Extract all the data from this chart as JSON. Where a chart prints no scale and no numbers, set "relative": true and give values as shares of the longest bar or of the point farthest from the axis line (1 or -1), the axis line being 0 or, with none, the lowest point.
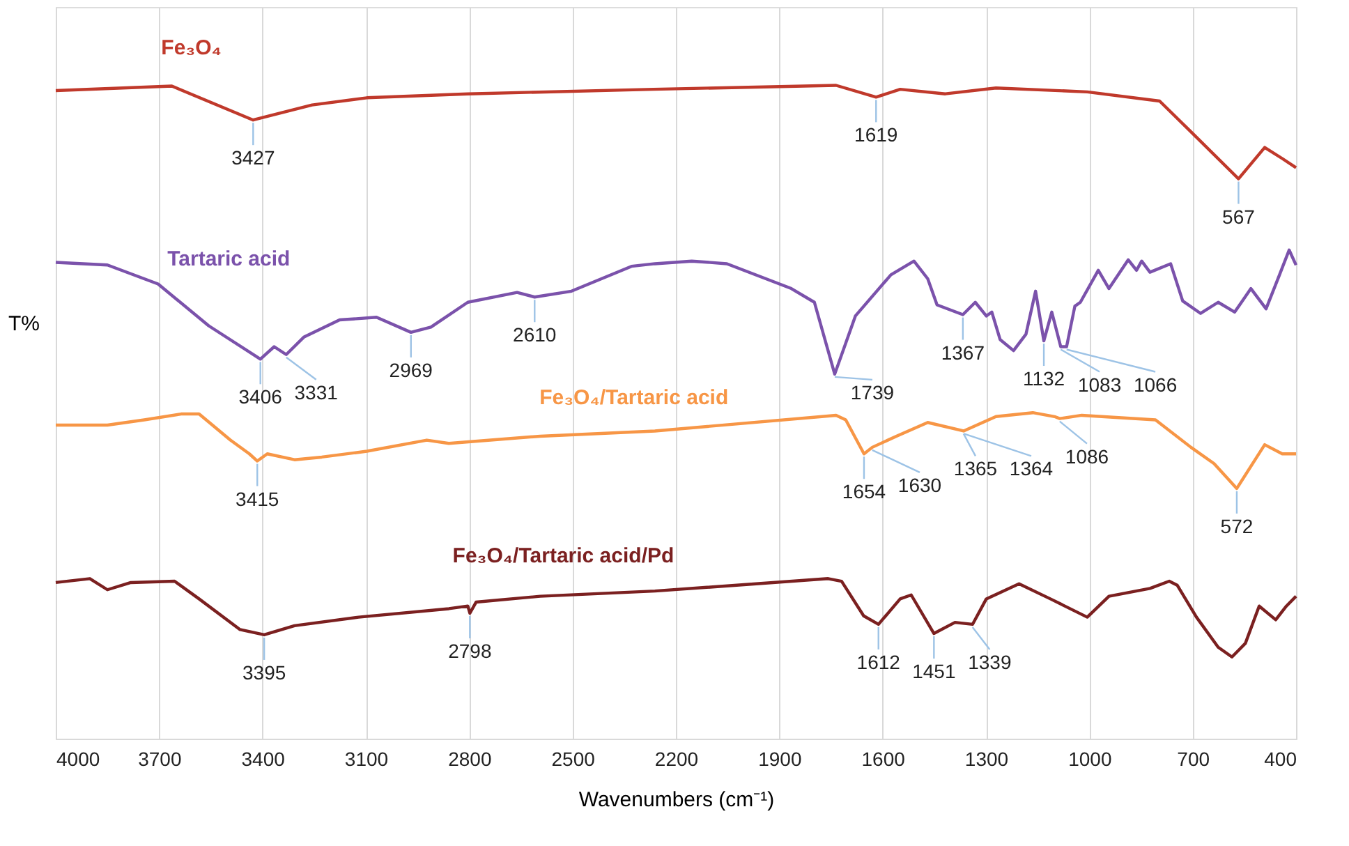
{
  "chart_data": {
    "type": "line",
    "relative": true,
    "xlabel": "Wavenumbers (cm⁻¹)",
    "ylabel": "T%",
    "xlim": [
      4000,
      400
    ],
    "xticks": [
      {
        "value": 4000,
        "label": "4000"
      },
      {
        "value": 3700,
        "label": "3700"
      },
      {
        "value": 3400,
        "label": "3400"
      },
      {
        "value": 3100,
        "label": "3100"
      },
      {
        "value": 2800,
        "label": "2800"
      },
      {
        "value": 2500,
        "label": "2500"
      },
      {
        "value": 2200,
        "label": "2200"
      },
      {
        "value": 1900,
        "label": "1900"
      },
      {
        "value": 1600,
        "label": "1600"
      },
      {
        "value": 1300,
        "label": "1300"
      },
      {
        "value": 1000,
        "label": "1000"
      },
      {
        "value": 700,
        "label": "700"
      },
      {
        "value": 400,
        "label": "400"
      }
    ],
    "grid": "x",
    "legend": false,
    "line_style": "solid",
    "marker": "none",
    "series": [
      {
        "name": "Fe₃O₄",
        "color": "#c0392b",
        "x": [
          4000,
          3663,
          3427,
          3256,
          3097,
          2804,
          2265,
          1735,
          1619,
          1549,
          1418,
          1271,
          1006,
          796,
          705,
          567,
          491,
          440,
          400
        ],
        "values": [
          0.992,
          0.999,
          0.947,
          0.97,
          0.981,
          0.987,
          0.994,
          1.0,
          0.982,
          0.994,
          0.987,
          0.996,
          0.99,
          0.976,
          0.929,
          0.857,
          0.905,
          0.888,
          0.874
        ]
      },
      {
        "name": "Tartaric acid",
        "color": "#7b52ab",
        "x": [
          4000,
          3850,
          3703,
          3556,
          3406,
          3366,
          3331,
          3279,
          3176,
          3069,
          2969,
          2911,
          2804,
          2661,
          2610,
          2503,
          2329,
          2261,
          2154,
          2052,
          1865,
          1798,
          1739,
          1679,
          1576,
          1509,
          1469,
          1442,
          1367,
          1331,
          1299,
          1283,
          1259,
          1220,
          1184,
          1156,
          1132,
          1109,
          1083,
          1066,
          1042,
          1026,
          974,
          943,
          887,
          863,
          848,
          824,
          764,
          729,
          677,
          626,
          578,
          531,
          487,
          448,
          420,
          400
        ],
        "values": [
          0.729,
          0.725,
          0.696,
          0.632,
          0.581,
          0.6,
          0.588,
          0.615,
          0.641,
          0.645,
          0.622,
          0.63,
          0.668,
          0.683,
          0.676,
          0.685,
          0.723,
          0.727,
          0.731,
          0.727,
          0.689,
          0.668,
          0.558,
          0.647,
          0.71,
          0.731,
          0.704,
          0.664,
          0.649,
          0.668,
          0.647,
          0.653,
          0.611,
          0.594,
          0.619,
          0.685,
          0.609,
          0.653,
          0.6,
          0.6,
          0.662,
          0.668,
          0.717,
          0.689,
          0.733,
          0.717,
          0.731,
          0.714,
          0.727,
          0.67,
          0.651,
          0.668,
          0.653,
          0.689,
          0.658,
          0.71,
          0.748,
          0.725
        ]
      },
      {
        "name": "Fe₃O₄/Tartaric acid",
        "color": "#f79646",
        "x": [
          4000,
          3850,
          3743,
          3636,
          3584,
          3493,
          3438,
          3415,
          3386,
          3307,
          3228,
          3097,
          2923,
          2859,
          2594,
          2261,
          1735,
          1707,
          1654,
          1630,
          1560,
          1469,
          1365,
          1271,
          1164,
          1101,
          1086,
          1022,
          808,
          705,
          638,
          572,
          491,
          440,
          400
        ],
        "values": [
          0.48,
          0.48,
          0.488,
          0.497,
          0.497,
          0.457,
          0.436,
          0.425,
          0.436,
          0.427,
          0.431,
          0.44,
          0.457,
          0.452,
          0.463,
          0.471,
          0.495,
          0.488,
          0.436,
          0.446,
          0.463,
          0.484,
          0.471,
          0.493,
          0.499,
          0.493,
          0.49,
          0.495,
          0.488,
          0.446,
          0.421,
          0.383,
          0.45,
          0.436,
          0.436
        ]
      },
      {
        "name": "Fe₃O₄/Tartaric acid/Pd",
        "color": "#7b2020",
        "x": [
          4000,
          3901,
          3850,
          3782,
          3655,
          3584,
          3465,
          3395,
          3307,
          3121,
          2859,
          2804,
          2798,
          2780,
          2594,
          2261,
          1758,
          1719,
          1655,
          1612,
          1549,
          1517,
          1451,
          1390,
          1339,
          1299,
          1204,
          1113,
          1006,
          943,
          824,
          768,
          745,
          689,
          626,
          586,
          547,
          507,
          459,
          428,
          400
        ],
        "values": [
          0.239,
          0.245,
          0.228,
          0.239,
          0.241,
          0.214,
          0.167,
          0.159,
          0.173,
          0.186,
          0.199,
          0.203,
          0.192,
          0.209,
          0.218,
          0.226,
          0.245,
          0.241,
          0.188,
          0.175,
          0.214,
          0.22,
          0.161,
          0.178,
          0.175,
          0.214,
          0.237,
          0.214,
          0.186,
          0.218,
          0.23,
          0.241,
          0.235,
          0.186,
          0.14,
          0.125,
          0.146,
          0.203,
          0.182,
          0.203,
          0.218
        ]
      }
    ],
    "annotations": [
      {
        "text": "3427",
        "x": 3427,
        "y": 0.947
      },
      {
        "text": "1619",
        "x": 1619,
        "y": 0.982
      },
      {
        "text": "567",
        "x": 567,
        "y": 0.857
      },
      {
        "text": "3406",
        "x": 3406,
        "y": 0.581
      },
      {
        "text": "3331",
        "x": 3331,
        "y": 0.588
      },
      {
        "text": "2969",
        "x": 2969,
        "y": 0.622
      },
      {
        "text": "2610",
        "x": 2610,
        "y": 0.676
      },
      {
        "text": "1739",
        "x": 1739,
        "y": 0.558
      },
      {
        "text": "1367",
        "x": 1367,
        "y": 0.649
      },
      {
        "text": "1132",
        "x": 1132,
        "y": 0.609
      },
      {
        "text": "1083",
        "x": 1083,
        "y": 0.6
      },
      {
        "text": "1066",
        "x": 1066,
        "y": 0.6
      },
      {
        "text": "3415",
        "x": 3415,
        "y": 0.425
      },
      {
        "text": "1654",
        "x": 1654,
        "y": 0.436
      },
      {
        "text": "1630",
        "x": 1630,
        "y": 0.446
      },
      {
        "text": "1365",
        "x": 1365,
        "y": 0.471
      },
      {
        "text": "1364",
        "x": 1364,
        "y": 0.471
      },
      {
        "text": "1086",
        "x": 1086,
        "y": 0.49
      },
      {
        "text": "572",
        "x": 572,
        "y": 0.383
      },
      {
        "text": "3395",
        "x": 3395,
        "y": 0.159
      },
      {
        "text": "2798",
        "x": 2798,
        "y": 0.192
      },
      {
        "text": "1612",
        "x": 1612,
        "y": 0.175
      },
      {
        "text": "1451",
        "x": 1451,
        "y": 0.161
      },
      {
        "text": "1339",
        "x": 1339,
        "y": 0.175
      }
    ]
  }
}
